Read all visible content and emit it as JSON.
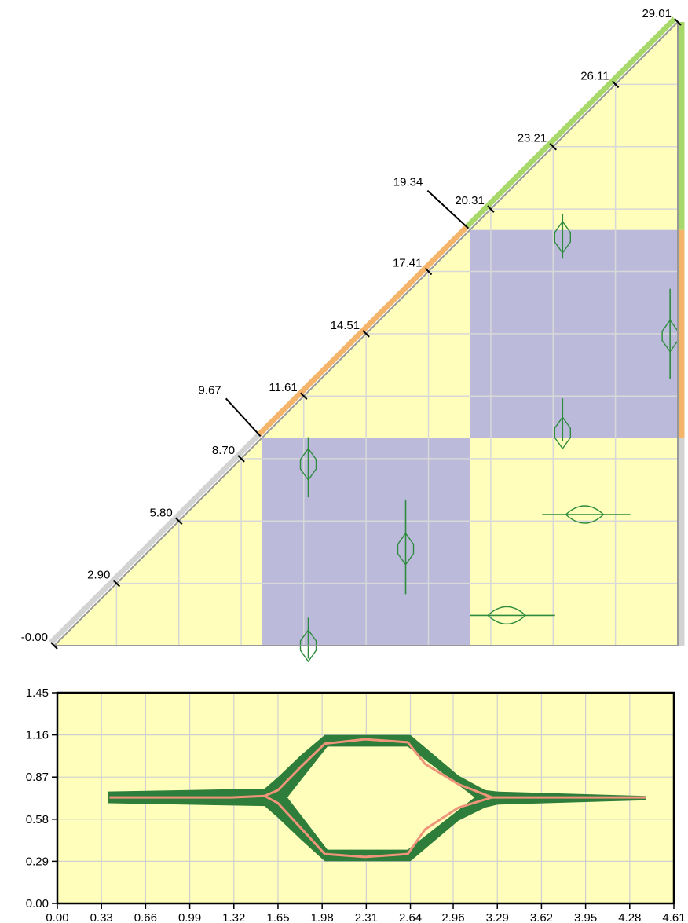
{
  "chart_data": [
    {
      "type": "heatmap",
      "subtype": "triangular-matrix",
      "axis_range": [
        0.0,
        29.01
      ],
      "diagonal_ticks": [
        "-0.00",
        "2.90",
        "5.80",
        "8.70",
        "11.61",
        "14.51",
        "17.41",
        "20.31",
        "23.21",
        "26.11",
        "29.01"
      ],
      "diagonal_tick_values": [
        0.0,
        2.9,
        5.8,
        8.7,
        11.61,
        14.51,
        17.41,
        20.31,
        23.21,
        26.11,
        29.01
      ],
      "segment_boundaries": [
        "9.67",
        "19.34"
      ],
      "segment_boundary_values": [
        9.67,
        19.34
      ],
      "segments": [
        {
          "start": 0.0,
          "end": 9.67,
          "color": "#d3d3d3"
        },
        {
          "start": 9.67,
          "end": 19.34,
          "color": "#f4b469"
        },
        {
          "start": 19.34,
          "end": 29.01,
          "color": "#a8d86a"
        }
      ],
      "blocks": [
        {
          "row": 0,
          "col": 0,
          "color": "#ffffbb"
        },
        {
          "row": 0,
          "col": 1,
          "color": "#bcbadb"
        },
        {
          "row": 0,
          "col": 2,
          "color": "#ffffbb"
        },
        {
          "row": 1,
          "col": 1,
          "color": "#ffffbb"
        },
        {
          "row": 1,
          "col": 2,
          "color": "#bcbadb"
        },
        {
          "row": 2,
          "col": 2,
          "color": "#ffffbb"
        }
      ],
      "features": [
        {
          "kind": "vertical",
          "x": 11.82,
          "y_center": 8.44,
          "y_span": [
            6.9,
            9.7
          ]
        },
        {
          "kind": "vertical",
          "x": 11.82,
          "y_center": 0.0,
          "y_span": [
            -0.6,
            1.3
          ]
        },
        {
          "kind": "vertical",
          "x": 16.35,
          "y_center": 4.5,
          "y_span": [
            2.4,
            6.8
          ]
        },
        {
          "kind": "vertical",
          "x": 23.65,
          "y_center": 19.0,
          "y_span": [
            18.0,
            20.1
          ]
        },
        {
          "kind": "vertical",
          "x": 23.65,
          "y_center": 9.9,
          "y_span": [
            9.5,
            11.5
          ]
        },
        {
          "kind": "vertical",
          "x": 28.65,
          "y_center": 14.41,
          "y_span": [
            12.4,
            16.6
          ]
        },
        {
          "kind": "horizontal",
          "x_center": 24.68,
          "y": 6.1,
          "x_span": [
            22.7,
            26.8
          ]
        },
        {
          "kind": "horizontal",
          "x_center": 21.05,
          "y": 1.41,
          "x_span": [
            19.35,
            23.3
          ]
        }
      ],
      "colors": {
        "low": "#ffffbb",
        "high": "#bcbadb",
        "signal": "#2e8b3e",
        "grid": "#d8d8d8",
        "diagonal": "#999999"
      }
    },
    {
      "type": "line",
      "subtype": "contact-map-profile",
      "x_ticks": [
        "0.00",
        "0.33",
        "0.66",
        "0.99",
        "1.32",
        "1.65",
        "1.98",
        "2.31",
        "2.64",
        "2.96",
        "3.29",
        "3.62",
        "3.95",
        "4.28",
        "4.61"
      ],
      "y_ticks": [
        "0.00",
        "0.29",
        "0.58",
        "0.87",
        "1.16",
        "1.45"
      ],
      "xlim": [
        0.0,
        4.61
      ],
      "ylim": [
        0.0,
        1.45
      ],
      "grid": true,
      "series": [
        {
          "role": "center-line",
          "color": "#f0957a",
          "x": [
            0.39,
            1.3,
            1.55,
            1.65,
            1.82,
            2.0,
            2.3,
            2.62,
            2.75,
            3.0,
            3.25,
            3.55,
            4.4
          ],
          "y": [
            0.73,
            0.73,
            0.74,
            0.78,
            0.94,
            1.1,
            1.13,
            1.11,
            0.96,
            0.82,
            0.73,
            0.73,
            0.73
          ]
        },
        {
          "role": "center-line",
          "color": "#f0957a",
          "x": [
            1.55,
            1.65,
            1.82,
            2.0,
            2.3,
            2.62,
            2.75,
            3.0,
            3.25
          ],
          "y": [
            0.74,
            0.69,
            0.52,
            0.34,
            0.32,
            0.34,
            0.51,
            0.66,
            0.73
          ]
        }
      ],
      "bands": [
        {
          "color": "#2e7d3a",
          "x": [
            0.38,
            1.55,
            1.65,
            1.82,
            2.0,
            2.64,
            2.82,
            3.0,
            3.2,
            3.29,
            4.4
          ],
          "y_upper": [
            0.77,
            0.79,
            0.87,
            1.02,
            1.16,
            1.16,
            1.02,
            0.88,
            0.78,
            0.77,
            0.74
          ],
          "y_lower": [
            0.69,
            0.67,
            0.59,
            0.44,
            0.29,
            0.29,
            0.43,
            0.57,
            0.66,
            0.68,
            0.71
          ]
        }
      ],
      "colors": {
        "background": "#ffffbb",
        "grid": "#d0d0d0"
      }
    }
  ]
}
